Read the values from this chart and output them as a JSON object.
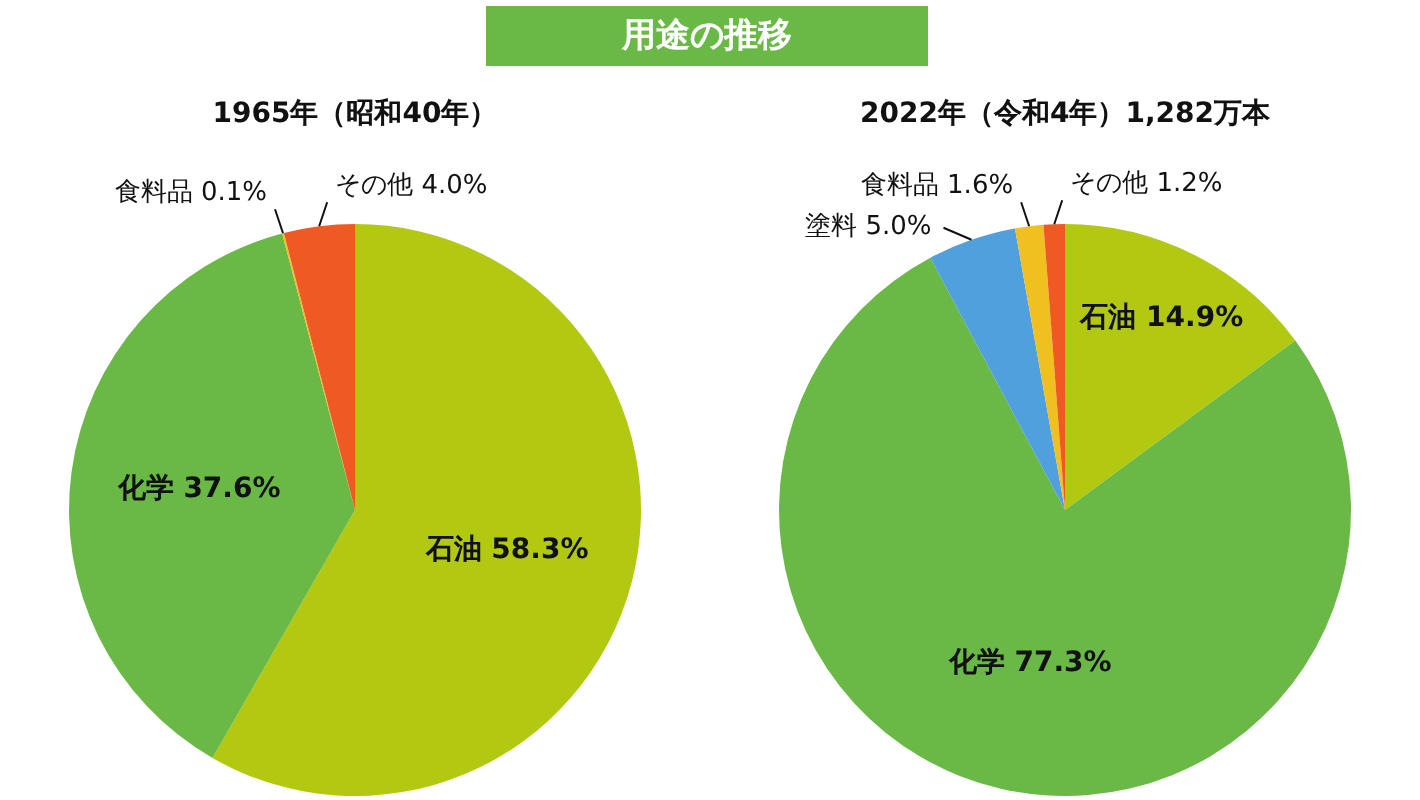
{
  "chart_data": [
    {
      "type": "pie",
      "title": "1965年（昭和40年）",
      "annotations": [
        "用途の推移"
      ],
      "categories": [
        "石油",
        "化学",
        "食料品",
        "その他"
      ],
      "values": [
        58.3,
        37.6,
        0.1,
        4.0
      ],
      "value_labels": [
        "58.3%",
        "37.6%",
        "0.1%",
        "4.0%"
      ],
      "colors": [
        "#b2c811",
        "#6ab946",
        "#f0c020",
        "#ef5a24"
      ],
      "legend": false
    },
    {
      "type": "pie",
      "title": "2022年（令和4年）1,282万本",
      "categories": [
        "石油",
        "化学",
        "塗料",
        "食料品",
        "その他"
      ],
      "values": [
        14.9,
        77.3,
        5.0,
        1.6,
        1.2
      ],
      "value_labels": [
        "14.9%",
        "77.3%",
        "5.0%",
        "1.6%",
        "1.2%"
      ],
      "colors": [
        "#b2c811",
        "#6ab946",
        "#4fa0dc",
        "#f0c020",
        "#ef5a24"
      ],
      "legend": false
    }
  ]
}
